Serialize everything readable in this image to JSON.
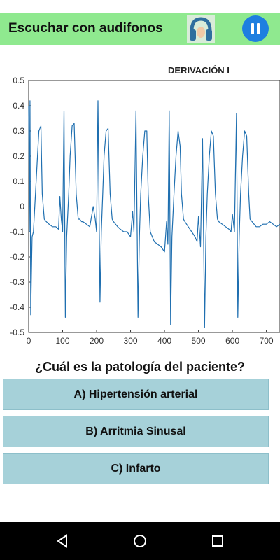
{
  "header": {
    "title": "Escuchar con audifonos",
    "headphones_icon": "headphones-icon",
    "pause_icon": "pause-icon",
    "bar_color": "#8fe98f",
    "pause_color": "#1e7fe0"
  },
  "chart_data": {
    "type": "line",
    "title": "DERIVACIÓN I",
    "xlabel": "",
    "ylabel": "",
    "xlim": [
      0,
      740
    ],
    "ylim": [
      -0.5,
      0.5
    ],
    "x_ticks": [
      0,
      100,
      200,
      300,
      400,
      500,
      600,
      700
    ],
    "y_ticks": [
      -0.5,
      -0.4,
      -0.3,
      -0.2,
      -0.1,
      0,
      0.1,
      0.2,
      0.3,
      0.4,
      0.5
    ],
    "x_tick_labels": [
      "0",
      "100",
      "200",
      "300",
      "400",
      "500",
      "600",
      "700"
    ],
    "y_tick_labels": [
      "-0.5",
      "-0.4",
      "-0.3",
      "-0.2",
      "-0.1",
      "0",
      "0.1",
      "0.2",
      "0.3",
      "0.4",
      "0.5"
    ],
    "grid": false,
    "line_color": "#1f6fb0",
    "series": [
      {
        "x": [
          0,
          2,
          4,
          6,
          10,
          14,
          20,
          26,
          30,
          36,
          40,
          46,
          52,
          60,
          70,
          80,
          88,
          92,
          96,
          100,
          104,
          108,
          112,
          118,
          122,
          128,
          134,
          140,
          146,
          150,
          156,
          160,
          170,
          180,
          190,
          196,
          200,
          204,
          210,
          214,
          218,
          222,
          228,
          234,
          240,
          246,
          250,
          256,
          262,
          270,
          280,
          290,
          300,
          306,
          310,
          316,
          322,
          326,
          330,
          336,
          342,
          348,
          352,
          358,
          364,
          370,
          380,
          390,
          400,
          406,
          410,
          414,
          418,
          422,
          428,
          434,
          440,
          446,
          450,
          456,
          460,
          470,
          480,
          490,
          496,
          500,
          506,
          512,
          518,
          522,
          526,
          532,
          538,
          544,
          550,
          556,
          560,
          570,
          580,
          590,
          596,
          600,
          606,
          612,
          616,
          620,
          624,
          630,
          636,
          642,
          648,
          652,
          658,
          664,
          670,
          680,
          690,
          700,
          710,
          720,
          730,
          740
        ],
        "y": [
          0.4,
          -0.1,
          0.42,
          -0.43,
          -0.12,
          -0.1,
          0.05,
          0.2,
          0.3,
          0.32,
          0.05,
          -0.05,
          -0.06,
          -0.07,
          -0.08,
          -0.08,
          -0.09,
          0.04,
          -0.05,
          -0.1,
          0.38,
          -0.44,
          -0.12,
          0.05,
          0.2,
          0.32,
          0.33,
          0.05,
          -0.05,
          -0.05,
          -0.06,
          -0.06,
          -0.07,
          -0.08,
          0.0,
          -0.05,
          -0.1,
          0.42,
          -0.38,
          -0.1,
          0.05,
          0.2,
          0.3,
          0.31,
          0.05,
          -0.05,
          -0.06,
          -0.07,
          -0.08,
          -0.09,
          -0.1,
          -0.1,
          -0.12,
          -0.02,
          -0.1,
          0.38,
          -0.44,
          -0.12,
          0.05,
          0.2,
          0.3,
          0.3,
          0.05,
          -0.1,
          -0.12,
          -0.14,
          -0.15,
          -0.16,
          -0.18,
          -0.06,
          -0.15,
          0.38,
          -0.47,
          -0.12,
          0.05,
          0.2,
          0.3,
          0.24,
          0.05,
          -0.05,
          -0.06,
          -0.08,
          -0.1,
          -0.12,
          -0.14,
          -0.04,
          -0.16,
          0.27,
          -0.48,
          -0.12,
          0.05,
          0.2,
          0.3,
          0.28,
          0.05,
          -0.05,
          -0.06,
          -0.07,
          -0.08,
          -0.09,
          -0.1,
          -0.03,
          -0.1,
          0.37,
          -0.44,
          -0.12,
          0.05,
          0.2,
          0.3,
          0.28,
          0.05,
          -0.05,
          -0.06,
          -0.07,
          -0.08,
          -0.08,
          -0.07,
          -0.07,
          -0.06,
          -0.07,
          -0.08,
          -0.07
        ]
      }
    ]
  },
  "question": "¿Cuál es la patología del paciente?",
  "answers": [
    {
      "label": "A) Hipertensión arterial"
    },
    {
      "label": "B) Arritmia Sinusal"
    },
    {
      "label": "C) Infarto"
    }
  ],
  "answer_color": "#a6d1d9",
  "nav": {
    "back_icon": "back-icon",
    "home_icon": "home-icon",
    "recents_icon": "recents-icon"
  }
}
